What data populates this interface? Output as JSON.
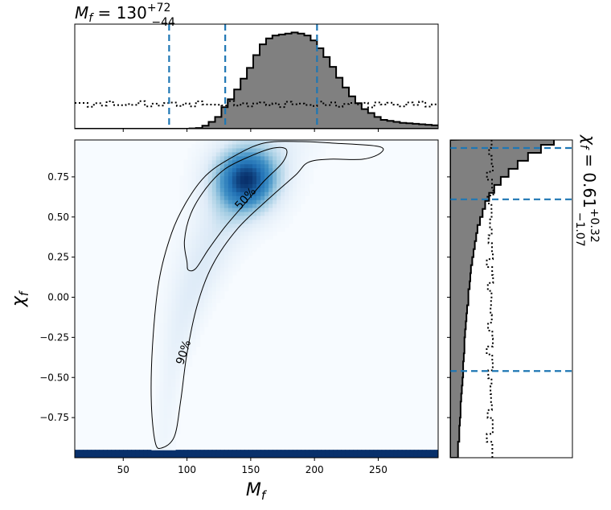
{
  "chart_data": [
    {
      "type": "heatmap",
      "title": "",
      "xlabel": "M_f",
      "ylabel": "χ_f",
      "xlim": [
        12,
        297
      ],
      "ylim": [
        -1.0,
        0.98
      ],
      "xticks": [
        50,
        100,
        150,
        200,
        250
      ],
      "xtick_labels": [
        "50",
        "100",
        "150",
        "200",
        "250"
      ],
      "yticks": [
        -0.75,
        -0.5,
        -0.25,
        0.0,
        0.25,
        0.5,
        0.75
      ],
      "ytick_labels": [
        "−0.75",
        "−0.50",
        "−0.25",
        "0.00",
        "0.25",
        "0.50",
        "0.75"
      ],
      "colormap": "Blues",
      "density_peak": {
        "x": 145,
        "y": 0.72
      },
      "contours": [
        {
          "label": "50%",
          "level": 0.5,
          "points": [
            [
              100,
              0.22
            ],
            [
              98,
              0.35
            ],
            [
              103,
              0.52
            ],
            [
              115,
              0.68
            ],
            [
              130,
              0.8
            ],
            [
              150,
              0.88
            ],
            [
              168,
              0.93
            ],
            [
              178,
              0.92
            ],
            [
              175,
              0.84
            ],
            [
              160,
              0.72
            ],
            [
              145,
              0.58
            ],
            [
              130,
              0.44
            ],
            [
              117,
              0.3
            ],
            [
              107,
              0.18
            ],
            [
              101,
              0.17
            ]
          ]
        },
        {
          "label": "90%",
          "level": 0.9,
          "points": [
            [
              75,
              -0.9
            ],
            [
              72,
              -0.65
            ],
            [
              73,
              -0.3
            ],
            [
              78,
              0.1
            ],
            [
              88,
              0.4
            ],
            [
              100,
              0.6
            ],
            [
              115,
              0.76
            ],
            [
              135,
              0.87
            ],
            [
              160,
              0.96
            ],
            [
              190,
              0.97
            ],
            [
              215,
              0.96
            ],
            [
              250,
              0.94
            ],
            [
              252,
              0.9
            ],
            [
              238,
              0.86
            ],
            [
              212,
              0.86
            ],
            [
              195,
              0.84
            ],
            [
              185,
              0.76
            ],
            [
              165,
              0.62
            ],
            [
              140,
              0.43
            ],
            [
              120,
              0.2
            ],
            [
              108,
              -0.05
            ],
            [
              100,
              -0.35
            ],
            [
              95,
              -0.65
            ],
            [
              90,
              -0.87
            ],
            [
              80,
              -0.94
            ]
          ]
        }
      ]
    },
    {
      "type": "histogram",
      "title": "M_f = 130 +72 −44",
      "title_value": "130",
      "title_upper": "+72",
      "title_lower": "−44",
      "xlim": [
        12,
        297
      ],
      "bin_width": 5,
      "posterior": [
        0,
        0,
        0,
        0,
        0,
        0,
        0,
        0,
        0,
        0,
        0,
        0,
        0,
        0,
        0,
        0,
        0,
        0,
        0.003,
        0.007,
        0.03,
        0.07,
        0.12,
        0.22,
        0.3,
        0.4,
        0.51,
        0.62,
        0.75,
        0.86,
        0.92,
        0.95,
        0.96,
        0.97,
        0.98,
        0.97,
        0.95,
        0.9,
        0.82,
        0.73,
        0.63,
        0.52,
        0.42,
        0.33,
        0.26,
        0.2,
        0.16,
        0.12,
        0.09,
        0.08,
        0.07,
        0.06,
        0.055,
        0.05,
        0.045,
        0.04,
        0.035,
        0.033,
        0.03,
        0.026,
        0.022,
        0.02,
        0.018
      ],
      "prior_level": 0.25,
      "quantile_lines": [
        86,
        130,
        202
      ],
      "xticks": [
        50,
        100,
        150,
        200,
        250
      ]
    },
    {
      "type": "histogram",
      "orientation": "horizontal",
      "title": "χ_f = 0.61 +0.32 −1.07",
      "title_value": "0.61",
      "title_upper": "+0.32",
      "title_lower": "−1.07",
      "ylim": [
        -1.0,
        0.98
      ],
      "bin_width": 0.05,
      "posterior": [
        0.06,
        0.06,
        0.07,
        0.07,
        0.075,
        0.08,
        0.08,
        0.085,
        0.09,
        0.095,
        0.1,
        0.1,
        0.105,
        0.11,
        0.11,
        0.115,
        0.12,
        0.125,
        0.13,
        0.14,
        0.14,
        0.15,
        0.155,
        0.16,
        0.17,
        0.18,
        0.19,
        0.2,
        0.21,
        0.23,
        0.25,
        0.27,
        0.3,
        0.34,
        0.39,
        0.45,
        0.52,
        0.6,
        0.7,
        0.8
      ],
      "prior_level": 0.35,
      "quantile_lines": [
        -0.46,
        0.61,
        0.93
      ],
      "yticks": [
        -0.75,
        -0.5,
        -0.25,
        0.0,
        0.25,
        0.5,
        0.75
      ]
    }
  ],
  "colors": {
    "heat_low": "#f7fbff",
    "heat_high": "#08306b",
    "hist_fill": "#808080",
    "quantile_line": "#1f77b4",
    "contour": "#000000"
  }
}
